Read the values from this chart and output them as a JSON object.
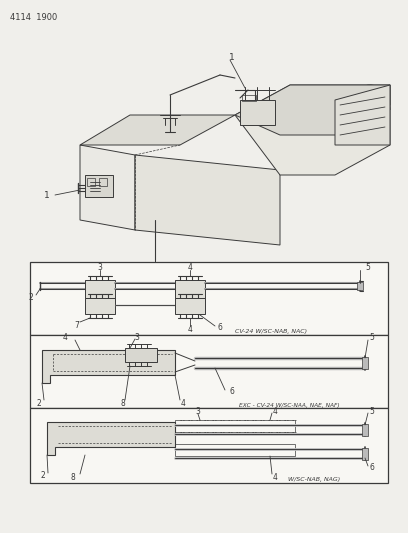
{
  "page_id": "4114  1900",
  "bg_color": "#f0efeb",
  "line_color": "#3a3a3a",
  "panel_bg": "#f8f7f3",
  "label1": "CV-24 W/SC-NAB, NAC)",
  "label2": "EXC - CV-24 W/SC-NAA, NAE, NAF)",
  "label3": "W/SC-NAB, NAG)"
}
